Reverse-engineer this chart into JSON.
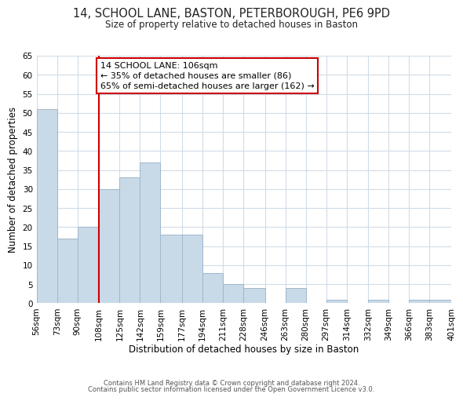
{
  "title": "14, SCHOOL LANE, BASTON, PETERBOROUGH, PE6 9PD",
  "subtitle": "Size of property relative to detached houses in Baston",
  "xlabel": "Distribution of detached houses by size in Baston",
  "ylabel": "Number of detached properties",
  "bin_edges": [
    56,
    73,
    90,
    108,
    125,
    142,
    159,
    177,
    194,
    211,
    228,
    246,
    263,
    280,
    297,
    314,
    332,
    349,
    366,
    383,
    401
  ],
  "bin_labels": [
    "56sqm",
    "73sqm",
    "90sqm",
    "108sqm",
    "125sqm",
    "142sqm",
    "159sqm",
    "177sqm",
    "194sqm",
    "211sqm",
    "228sqm",
    "246sqm",
    "263sqm",
    "280sqm",
    "297sqm",
    "314sqm",
    "332sqm",
    "349sqm",
    "366sqm",
    "383sqm",
    "401sqm"
  ],
  "counts": [
    51,
    17,
    20,
    30,
    33,
    37,
    18,
    18,
    8,
    5,
    4,
    0,
    4,
    0,
    1,
    0,
    1,
    0,
    1,
    1
  ],
  "bar_color": "#c8d9e8",
  "bar_edge_color": "#a0b8cc",
  "vline_x": 108,
  "vline_color": "#cc0000",
  "annotation_line1": "14 SCHOOL LANE: 106sqm",
  "annotation_line2": "← 35% of detached houses are smaller (86)",
  "annotation_line3": "65% of semi-detached houses are larger (162) →",
  "annotation_box_color": "#ffffff",
  "annotation_box_edge": "#cc0000",
  "ylim": [
    0,
    65
  ],
  "yticks": [
    0,
    5,
    10,
    15,
    20,
    25,
    30,
    35,
    40,
    45,
    50,
    55,
    60,
    65
  ],
  "footer1": "Contains HM Land Registry data © Crown copyright and database right 2024.",
  "footer2": "Contains public sector information licensed under the Open Government Licence v3.0.",
  "bg_color": "#ffffff",
  "grid_color": "#d0dce8",
  "title_fontsize": 10.5,
  "subtitle_fontsize": 8.5,
  "xlabel_fontsize": 8.5,
  "ylabel_fontsize": 8.5,
  "tick_fontsize": 7.5,
  "footer_fontsize": 6.0,
  "annotation_fontsize": 8.0
}
